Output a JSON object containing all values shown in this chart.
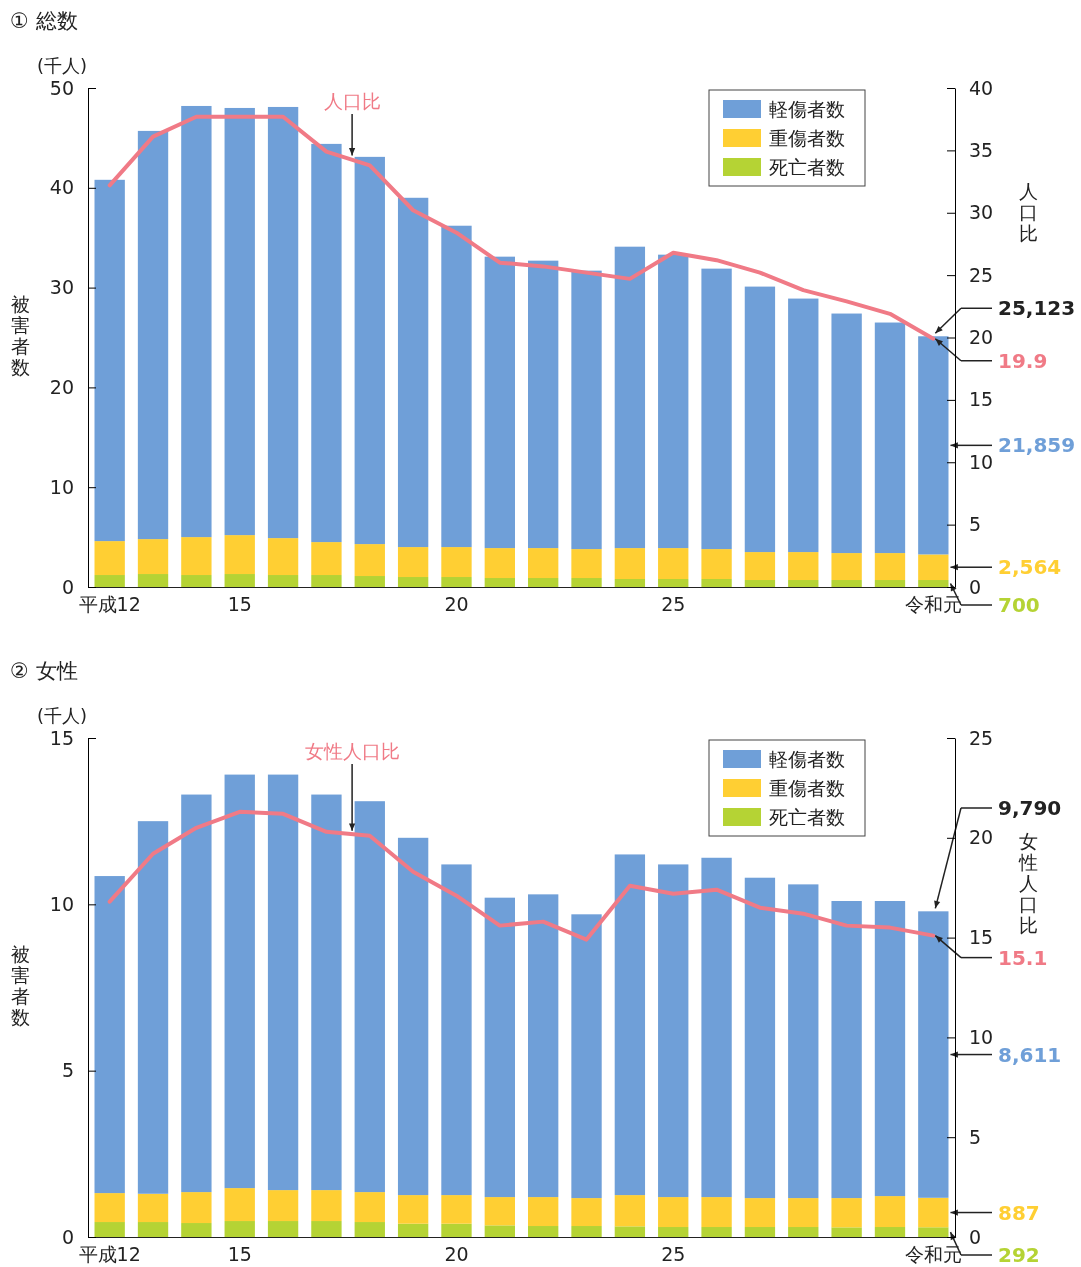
{
  "chart_data": [
    {
      "type": "bar",
      "title": "① 総数",
      "ylabel": "被害者数",
      "y2label": "人口比",
      "annotations": [
        "(千人)",
        "25,123",
        "19.9",
        "21,859",
        "2,564",
        "700"
      ],
      "categories": [
        "平成12",
        null,
        null,
        "15",
        null,
        null,
        null,
        null,
        "20",
        null,
        null,
        null,
        null,
        "25",
        null,
        null,
        null,
        null,
        null,
        "令和元"
      ],
      "stacked": true,
      "legend": "top right",
      "ylim": [
        0,
        50
      ],
      "yticks": [
        0,
        10,
        20,
        30,
        40,
        50
      ],
      "y2lim": [
        0,
        40
      ],
      "y2ticks": [
        0,
        5,
        10,
        15,
        20,
        25,
        30,
        35,
        40
      ],
      "series": [
        {
          "name": "死亡者数",
          "color": "#b5d334",
          "values": [
            1.2,
            1.3,
            1.2,
            1.3,
            1.2,
            1.2,
            1.1,
            1.0,
            1.0,
            0.9,
            0.9,
            0.9,
            0.8,
            0.8,
            0.8,
            0.7,
            0.7,
            0.7,
            0.7,
            0.7
          ]
        },
        {
          "name": "重傷者数",
          "color": "#ffcf33",
          "values": [
            3.4,
            3.5,
            3.8,
            3.9,
            3.7,
            3.3,
            3.2,
            3.0,
            3.0,
            3.0,
            3.0,
            2.9,
            3.1,
            3.1,
            3.0,
            2.8,
            2.8,
            2.7,
            2.7,
            2.564
          ]
        },
        {
          "name": "軽傷者数",
          "color": "#6f9fd8",
          "values": [
            36.2,
            40.9,
            43.2,
            42.8,
            43.2,
            39.9,
            38.8,
            35.0,
            32.2,
            29.2,
            28.8,
            27.9,
            30.2,
            29.4,
            28.1,
            26.6,
            25.4,
            24.0,
            23.1,
            21.859
          ]
        },
        {
          "name": "人口比",
          "type": "line",
          "axis": "y2",
          "color": "#f07a86",
          "values": [
            32.2,
            36.1,
            37.7,
            37.7,
            37.7,
            34.9,
            33.8,
            30.2,
            28.4,
            26.0,
            25.7,
            25.2,
            24.7,
            26.8,
            26.2,
            25.2,
            23.8,
            22.9,
            21.9,
            19.9
          ]
        }
      ]
    },
    {
      "type": "bar",
      "title": "② 女性",
      "ylabel": "被害者数",
      "y2label": "女性人口比",
      "annotations": [
        "(千人)",
        "9,790",
        "15.1",
        "8,611",
        "887",
        "292"
      ],
      "categories": [
        "平成12",
        null,
        null,
        "15",
        null,
        null,
        null,
        null,
        "20",
        null,
        null,
        null,
        null,
        "25",
        null,
        null,
        null,
        null,
        null,
        "令和元"
      ],
      "stacked": true,
      "legend": "top right",
      "ylim": [
        0,
        15
      ],
      "yticks": [
        0,
        5,
        10,
        15
      ],
      "y2lim": [
        0,
        25
      ],
      "y2ticks": [
        0,
        5,
        10,
        15,
        20,
        25
      ],
      "series": [
        {
          "name": "死亡者数",
          "color": "#b5d334",
          "values": [
            0.45,
            0.45,
            0.42,
            0.48,
            0.48,
            0.48,
            0.45,
            0.4,
            0.4,
            0.35,
            0.33,
            0.33,
            0.32,
            0.3,
            0.3,
            0.3,
            0.3,
            0.29,
            0.3,
            0.292
          ]
        },
        {
          "name": "重傷者数",
          "color": "#ffcf33",
          "values": [
            0.87,
            0.85,
            0.93,
            0.99,
            0.93,
            0.93,
            0.9,
            0.86,
            0.86,
            0.85,
            0.87,
            0.84,
            0.94,
            0.9,
            0.9,
            0.87,
            0.87,
            0.88,
            0.93,
            0.887
          ]
        },
        {
          "name": "軽傷者数",
          "color": "#6f9fd8",
          "values": [
            9.53,
            11.2,
            11.95,
            12.43,
            12.49,
            11.89,
            11.75,
            10.74,
            9.94,
            9.0,
            9.1,
            8.53,
            10.24,
            10.0,
            10.2,
            9.63,
            9.43,
            8.93,
            8.87,
            8.611
          ]
        },
        {
          "name": "女性人口比",
          "type": "line",
          "axis": "y2",
          "color": "#f07a86",
          "values": [
            16.8,
            19.2,
            20.5,
            21.3,
            21.2,
            20.3,
            20.1,
            18.3,
            17.1,
            15.6,
            15.8,
            14.9,
            17.6,
            17.2,
            17.4,
            16.5,
            16.2,
            15.6,
            15.5,
            15.1
          ]
        }
      ]
    }
  ]
}
